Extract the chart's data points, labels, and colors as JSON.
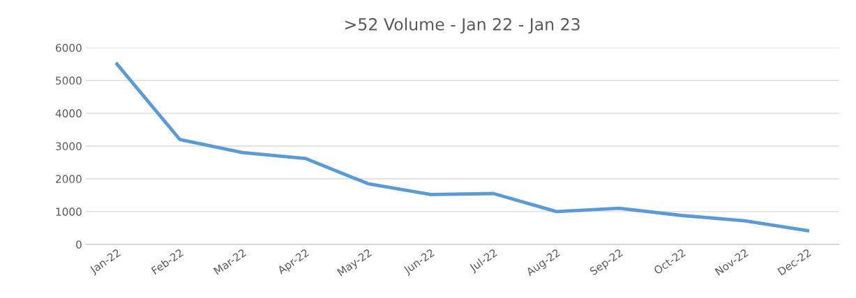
{
  "chart_data": {
    "type": "line",
    "title": ">52 Volume - Jan 22 - Jan 23",
    "categories": [
      "Jan-22",
      "Feb-22",
      "Mar-22",
      "Apr-22",
      "May-22",
      "Jun-22",
      "Jul-22",
      "Aug-22",
      "Sep-22",
      "Oct-22",
      "Nov-22",
      "Dec-22"
    ],
    "series": [
      {
        "color": "#5b9bd5",
        "values": [
          5500,
          3200,
          2800,
          2620,
          1850,
          1520,
          1550,
          1000,
          1100,
          880,
          720,
          420
        ]
      }
    ],
    "ylim": [
      0,
      6000
    ],
    "yticks": [
      0,
      1000,
      2000,
      3000,
      4000,
      5000,
      6000
    ],
    "grid": "y",
    "marker": "none",
    "line_style": "solid"
  }
}
